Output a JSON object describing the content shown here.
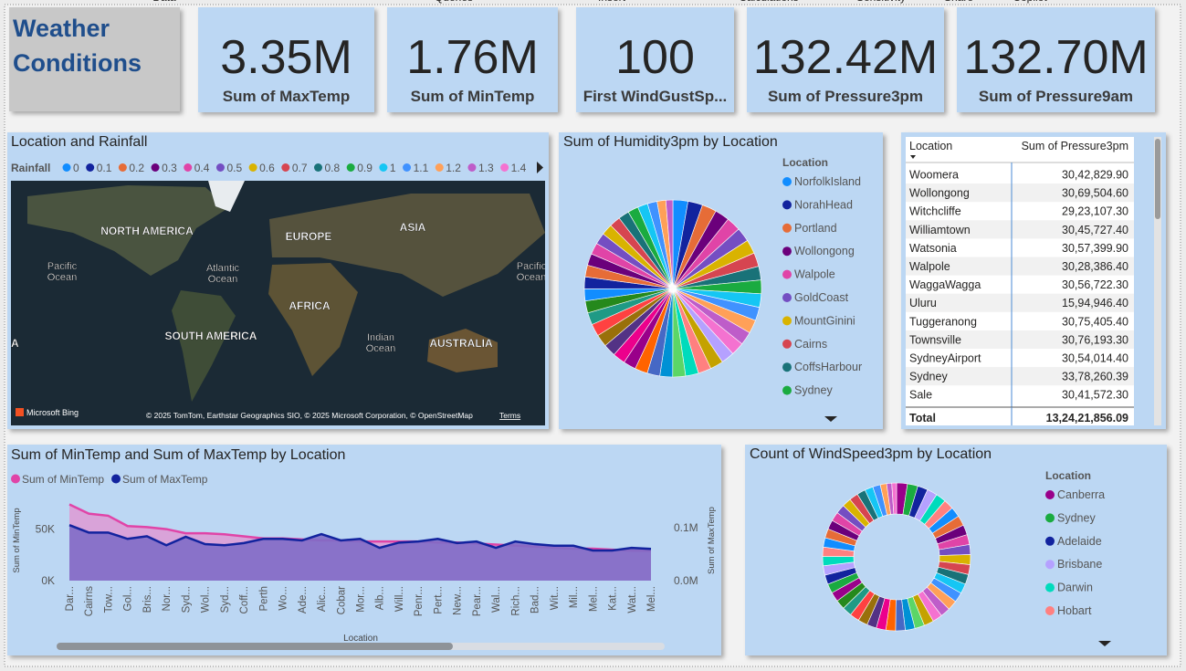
{
  "ribbon": [
    "Data",
    "Queries",
    "Insert",
    "Calculations",
    "Sensitivity",
    "Share",
    "Copilot"
  ],
  "page_title": [
    "Weather",
    "Conditions"
  ],
  "cards": [
    {
      "value": "3.35M",
      "label": "Sum of MaxTemp"
    },
    {
      "value": "1.76M",
      "label": "Sum of MinTemp"
    },
    {
      "value": "100",
      "label": "First WindGustSp..."
    },
    {
      "value": "132.42M",
      "label": "Sum of Pressure3pm"
    },
    {
      "value": "132.70M",
      "label": "Sum of Pressure9am"
    }
  ],
  "map": {
    "title": "Location and Rainfall",
    "legend_title": "Rainfall",
    "legend": [
      0,
      0.1,
      0.2,
      0.3,
      0.4,
      0.5,
      0.6,
      0.7,
      0.8,
      0.9,
      1,
      1.1,
      1.2,
      1.3,
      1.4
    ],
    "legend_colors": [
      "#118dff",
      "#12239e",
      "#e66c37",
      "#6b007b",
      "#e044a7",
      "#744ec2",
      "#d9b300",
      "#d64550",
      "#197278",
      "#1aab40",
      "#15c6f4",
      "#4092ff",
      "#ffa058",
      "#be5dc9",
      "#f472d0"
    ],
    "labels": [
      "NORTH AMERICA",
      "EUROPE",
      "ASIA",
      "Pacific",
      "Ocean",
      "Atlantic",
      "Ocean",
      "AFRICA",
      "SOUTH AMERICA",
      "Indian",
      "Ocean",
      "AUSTRALIA",
      "A",
      "Pacific",
      "Ocean"
    ],
    "brand": "Microsoft Bing",
    "attribution": "© 2025 TomTom, Earthstar Geographics SIO, © 2025 Microsoft Corporation, © OpenStreetMap",
    "terms": "Terms"
  },
  "table": {
    "columns": [
      "Location",
      "Sum of Pressure3pm"
    ],
    "rows": [
      [
        "Woomera",
        "30,42,829.90"
      ],
      [
        "Wollongong",
        "30,69,504.60"
      ],
      [
        "Witchcliffe",
        "29,23,107.30"
      ],
      [
        "Williamtown",
        "30,45,727.40"
      ],
      [
        "Watsonia",
        "30,57,399.90"
      ],
      [
        "Walpole",
        "30,28,386.40"
      ],
      [
        "WaggaWagga",
        "30,56,722.30"
      ],
      [
        "Uluru",
        "15,94,946.40"
      ],
      [
        "Tuggeranong",
        "30,75,405.40"
      ],
      [
        "Townsville",
        "30,76,193.30"
      ],
      [
        "SydneyAirport",
        "30,54,014.40"
      ],
      [
        "Sydney",
        "33,78,260.39"
      ],
      [
        "Sale",
        "30,41,572.30"
      ]
    ],
    "total": [
      "Total",
      "13,24,21,856.09"
    ]
  },
  "chart_data": [
    {
      "type": "pie",
      "title": "Sum of Humidity3pm by Location",
      "legend_title": "Location",
      "categories": [
        "NorfolkIsland",
        "NorahHead",
        "Portland",
        "Wollongong",
        "Walpole",
        "GoldCoast",
        "MountGinini",
        "Cairns",
        "CoffsHarbour",
        "Sydney",
        null,
        null,
        null,
        null,
        null,
        null,
        null,
        null,
        null,
        null,
        null,
        null,
        null,
        null,
        null,
        null,
        null,
        null,
        null,
        null,
        null,
        null,
        null,
        null,
        null,
        null,
        null,
        null,
        null,
        null,
        null,
        null,
        null,
        null
      ],
      "values": [
        172000,
        168000,
        166000,
        165000,
        163000,
        162000,
        160000,
        158000,
        157000,
        156000,
        155000,
        154000,
        153000,
        152000,
        151000,
        150000,
        150000,
        149000,
        148000,
        147000,
        146000,
        145000,
        145000,
        144000,
        143000,
        142000,
        141000,
        140000,
        139000,
        138000,
        137000,
        136000,
        135000,
        134000,
        132000,
        130000,
        128000,
        126000,
        124000,
        120000,
        116000,
        110000,
        100000,
        80000
      ],
      "palette": [
        "#118dff",
        "#12239e",
        "#e66c37",
        "#6b007b",
        "#e044a7",
        "#744ec2",
        "#d9b300",
        "#d64550",
        "#197278",
        "#1aab40",
        "#15c6f4",
        "#4092ff",
        "#ffa058",
        "#be5dc9",
        "#f472d0",
        "#b5a1ff",
        "#c4a200",
        "#ff8080",
        "#00dbbc",
        "#5bd667",
        "#0091d5",
        "#4668c5",
        "#ff6300",
        "#99008a",
        "#ec008c",
        "#533285",
        "#99700a",
        "#ff4141",
        "#1f9a85",
        "#25891c"
      ]
    },
    {
      "type": "area",
      "title": "Sum of MinTemp and Sum of MaxTemp by Location",
      "categories": [
        "Dar...",
        "Cairns",
        "Tow...",
        "Gol...",
        "Bris...",
        "Nor...",
        "Syd...",
        "Wol...",
        "Syd...",
        "Coff...",
        "Perth",
        "Wo...",
        "Ade...",
        "Alic...",
        "Cobar",
        "Mor...",
        "Alb...",
        "Will...",
        "Penr...",
        "Pert...",
        "New...",
        "Pear...",
        "Wal...",
        "Rich...",
        "Bad...",
        "Wit...",
        "Mil...",
        "Mel...",
        "Kat...",
        "Wat...",
        "Mel..."
      ],
      "series": [
        {
          "name": "Sum of MinTemp",
          "color": "#e044a7",
          "fill": "#d9a3d9",
          "values": [
            74000,
            65000,
            63000,
            53000,
            52000,
            50000,
            46000,
            46000,
            45000,
            43000,
            41000,
            41000,
            40000,
            39000,
            39000,
            38000,
            38000,
            38000,
            38000,
            37000,
            37000,
            36000,
            35000,
            34000,
            33000,
            32000,
            31000,
            31000,
            30000,
            29000,
            29000
          ]
        },
        {
          "name": "Sum of MaxTemp",
          "color": "#12239e",
          "fill": "#7f6dc7",
          "axis": "y2",
          "values": [
            105000,
            91000,
            91000,
            79000,
            84000,
            67000,
            83000,
            69000,
            67000,
            71000,
            79000,
            79000,
            76000,
            88000,
            76000,
            79000,
            62000,
            72000,
            74000,
            79000,
            71000,
            74000,
            62000,
            74000,
            69000,
            66000,
            66000,
            57000,
            57000,
            62000,
            60000
          ]
        }
      ],
      "ylim": [
        0,
        78000
      ],
      "yticks": [
        {
          "value": 0,
          "label": "0K"
        },
        {
          "value": 50000,
          "label": "50K"
        }
      ],
      "y2lim": [
        0,
        152000
      ],
      "y2ticks": [
        {
          "value": 0,
          "label": "0.0M"
        },
        {
          "value": 100000,
          "label": "0.1M"
        }
      ],
      "x_label": "Location",
      "y_label": "Sum of MinTemp",
      "y2_label": "Sum of MaxTemp"
    },
    {
      "type": "donut",
      "title": "Count of WindSpeed3pm by Location",
      "legend_title": "Location",
      "categories": [
        "Canberra",
        "Sydney",
        "Adelaide",
        "Brisbane",
        "Darwin",
        "Hobart",
        null,
        null,
        null,
        null,
        null,
        null,
        null,
        null,
        null,
        null,
        null,
        null,
        null,
        null,
        null,
        null,
        null,
        null,
        null,
        null,
        null,
        null,
        null,
        null,
        null,
        null,
        null,
        null,
        null,
        null,
        null,
        null,
        null,
        null,
        null,
        null,
        null,
        null,
        null,
        null,
        null,
        null,
        null
      ],
      "values": [
        3400,
        3300,
        3200,
        3200,
        3190,
        3180,
        3170,
        3160,
        3150,
        3150,
        3140,
        3130,
        3120,
        3110,
        3100,
        3100,
        3090,
        3080,
        3070,
        3060,
        3050,
        3040,
        3040,
        3030,
        3020,
        3010,
        3000,
        3000,
        2990,
        2980,
        2970,
        2960,
        2950,
        2940,
        2930,
        2920,
        2910,
        2900,
        2890,
        2880,
        2860,
        2840,
        2800,
        2700,
        2600,
        2400,
        2000,
        1600,
        1500
      ],
      "palette": [
        "#99008a",
        "#1aab40",
        "#12239e",
        "#b5a1ff",
        "#00dbbc",
        "#ff8080",
        "#118dff",
        "#e66c37",
        "#6b007b",
        "#e044a7",
        "#744ec2",
        "#d9b300",
        "#d64550",
        "#197278",
        "#15c6f4",
        "#4092ff",
        "#ffa058",
        "#be5dc9",
        "#f472d0",
        "#c4a200",
        "#5bd667",
        "#0091d5",
        "#4668c5",
        "#ff6300",
        "#ec008c",
        "#533285",
        "#99700a",
        "#ff4141",
        "#1f9a85",
        "#25891c"
      ]
    }
  ]
}
